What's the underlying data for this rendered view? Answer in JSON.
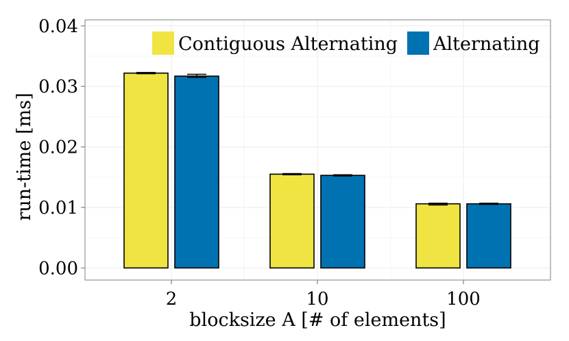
{
  "chart_data": {
    "type": "bar",
    "title": "",
    "xlabel": "blocksize A [# of elements]",
    "ylabel": "run-time [ms]",
    "categories": [
      "2",
      "10",
      "100"
    ],
    "ylim": [
      -0.002,
      0.041
    ],
    "yticks": [
      "0.00",
      "0.01",
      "0.02",
      "0.03",
      "0.04"
    ],
    "grid": true,
    "legend": "top-right",
    "series": [
      {
        "name": "Contiguous Alternating",
        "color": "#F0E442",
        "values": [
          0.0322,
          0.0155,
          0.0106
        ],
        "err_low": [
          0.0321,
          0.0154,
          0.0104
        ],
        "err_high": [
          0.0323,
          0.0156,
          0.0107
        ]
      },
      {
        "name": "Alternating",
        "color": "#0072B2",
        "values": [
          0.0317,
          0.0153,
          0.0106
        ],
        "err_low": [
          0.0315,
          0.0152,
          0.0105
        ],
        "err_high": [
          0.032,
          0.0154,
          0.0107
        ]
      }
    ]
  }
}
